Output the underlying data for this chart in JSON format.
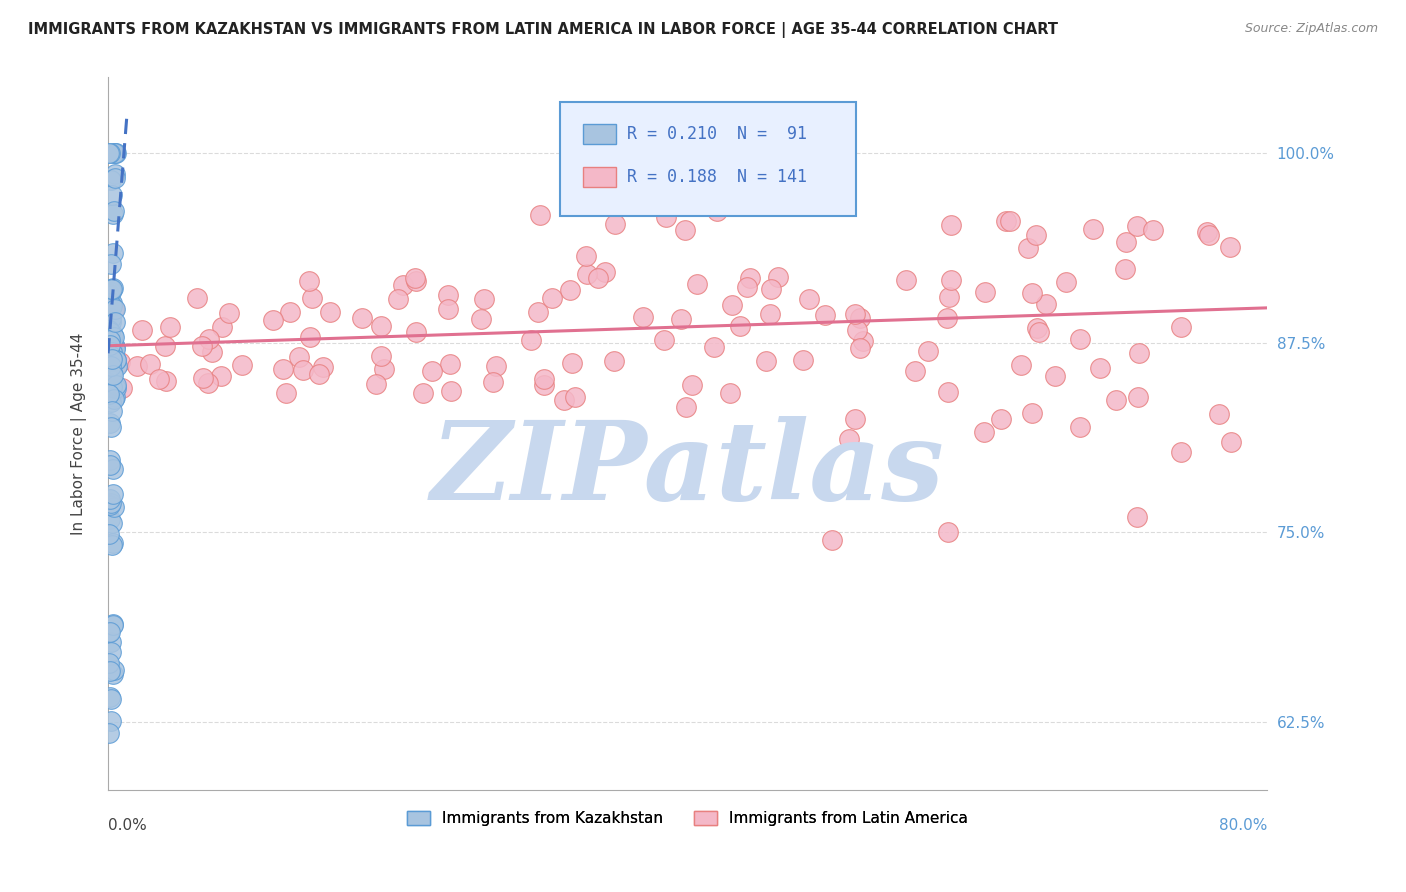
{
  "title": "IMMIGRANTS FROM KAZAKHSTAN VS IMMIGRANTS FROM LATIN AMERICA IN LABOR FORCE | AGE 35-44 CORRELATION CHART",
  "source": "Source: ZipAtlas.com",
  "ylabel": "In Labor Force | Age 35-44",
  "ytick_labels": [
    "62.5%",
    "75.0%",
    "87.5%",
    "100.0%"
  ],
  "ytick_values": [
    0.625,
    0.75,
    0.875,
    1.0
  ],
  "legend_r1": "R = 0.210",
  "legend_n1": "N =  91",
  "legend_r2": "R = 0.188",
  "legend_n2": "N = 141",
  "color_kaz": "#a8c4e0",
  "color_lat": "#f4b8c8",
  "color_kaz_edge": "#5b9bd5",
  "color_lat_edge": "#e88080",
  "color_kaz_line": "#4472c4",
  "color_lat_line": "#e07090",
  "background": "#ffffff",
  "watermark": "ZIPatlas",
  "watermark_color": "#c8d8ee",
  "xmin": 0.0,
  "xmax": 0.8,
  "ymin": 0.58,
  "ymax": 1.05,
  "legend_box_color": "#e8f0ff",
  "legend_border_color": "#5b9bd5",
  "label_kaz": "Immigrants from Kazakhstan",
  "label_lat": "Immigrants from Latin America"
}
